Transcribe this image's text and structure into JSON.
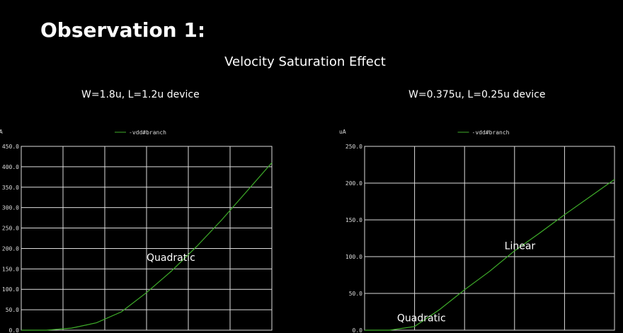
{
  "title": "Observation 1:",
  "subtitle": "Velocity Saturation Effect",
  "chart_data": [
    {
      "type": "line",
      "title": "W=1.8u, L=1.2u device",
      "ylabel": "uA",
      "legend": [
        "-vdd#branch"
      ],
      "legend_color": "#3fae2a",
      "grid": true,
      "ylim": [
        0,
        450
      ],
      "yticks": [
        "0.0",
        "50.0",
        "100.0",
        "150.0",
        "200.0",
        "250.0",
        "300.0",
        "350.0",
        "400.0",
        "450.0"
      ],
      "xlim": [
        0,
        1
      ],
      "x_gridlines": 6,
      "series": [
        {
          "x": [
            0,
            0.1,
            0.2,
            0.3,
            0.4,
            0.5,
            0.6,
            0.7,
            0.8,
            0.9,
            1.0
          ],
          "y": [
            0,
            0,
            5,
            18,
            45,
            92,
            145,
            205,
            270,
            340,
            410
          ]
        }
      ],
      "annotations": [
        {
          "text": "Quadratic",
          "x": 0.5,
          "y": 170
        }
      ]
    },
    {
      "type": "line",
      "title": "W=0.375u, L=0.25u device",
      "ylabel": "uA",
      "legend": [
        "-vdd#branch"
      ],
      "legend_color": "#3fae2a",
      "grid": true,
      "ylim": [
        0,
        250
      ],
      "yticks": [
        "0.0",
        "50.0",
        "100.0",
        "150.0",
        "200.0",
        "250.0"
      ],
      "xlim": [
        0,
        1
      ],
      "x_gridlines": 5,
      "series": [
        {
          "x": [
            0,
            0.1,
            0.2,
            0.3,
            0.4,
            0.5,
            0.6,
            0.7,
            0.8,
            0.9,
            1.0
          ],
          "y": [
            0,
            0,
            5,
            28,
            55,
            80,
            108,
            132,
            157,
            181,
            205
          ]
        }
      ],
      "annotations": [
        {
          "text": "Linear",
          "x": 0.56,
          "y": 110
        },
        {
          "text": "Quadratic",
          "x": 0.13,
          "y": 12
        }
      ]
    }
  ]
}
